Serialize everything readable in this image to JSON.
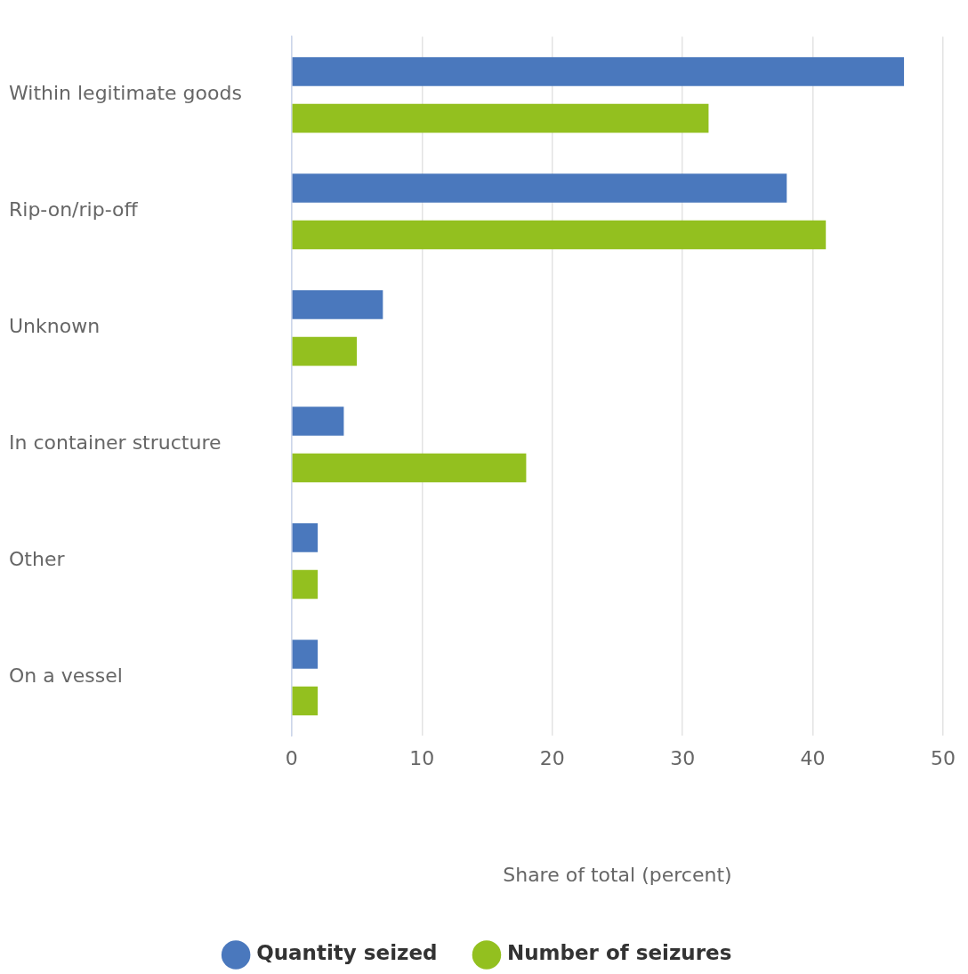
{
  "chart_data": {
    "type": "bar",
    "orientation": "horizontal",
    "xlabel": "Share of total (percent)",
    "categories": [
      "Within legitimate goods",
      "Rip-on/rip-off",
      "Unknown",
      "In container structure",
      "Other",
      "On a vessel"
    ],
    "series": [
      {
        "name": "Quantity seized",
        "color": "#4a78bd",
        "values": [
          47,
          38,
          7,
          4,
          2,
          2
        ]
      },
      {
        "name": "Number of seizures",
        "color": "#93c01f",
        "values": [
          32,
          41,
          5,
          18,
          2,
          2
        ]
      }
    ],
    "xlim": [
      0,
      50
    ],
    "xticks": [
      0,
      10,
      20,
      30,
      40,
      50
    ],
    "grid": "x",
    "legend": "bottom"
  }
}
